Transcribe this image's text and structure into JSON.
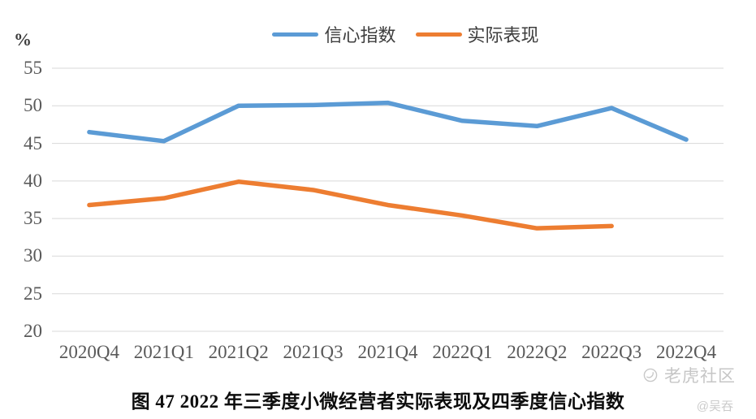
{
  "chart_data": {
    "type": "line",
    "title": "图 47  2022 年三季度小微经营者实际表现及四季度信心指数",
    "ylabel": "%",
    "categories": [
      "2020Q4",
      "2021Q1",
      "2021Q2",
      "2021Q3",
      "2021Q4",
      "2022Q1",
      "2022Q2",
      "2022Q3",
      "2022Q4"
    ],
    "series": [
      {
        "name": "信心指数",
        "color": "#5B9BD5",
        "values": [
          46.5,
          45.3,
          50.0,
          50.1,
          50.4,
          48.0,
          47.3,
          49.7,
          45.5
        ]
      },
      {
        "name": "实际表现",
        "color": "#ED7D31",
        "values": [
          36.8,
          37.7,
          39.9,
          38.8,
          36.8,
          35.4,
          33.7,
          34.0,
          null
        ]
      }
    ],
    "yticks": [
      55,
      50,
      45,
      40,
      35,
      30,
      25,
      20
    ],
    "ylim": [
      20,
      55
    ],
    "grid": true,
    "legend_position": "top"
  },
  "watermark": {
    "brand": "老虎社区",
    "user": "@吴吞"
  }
}
